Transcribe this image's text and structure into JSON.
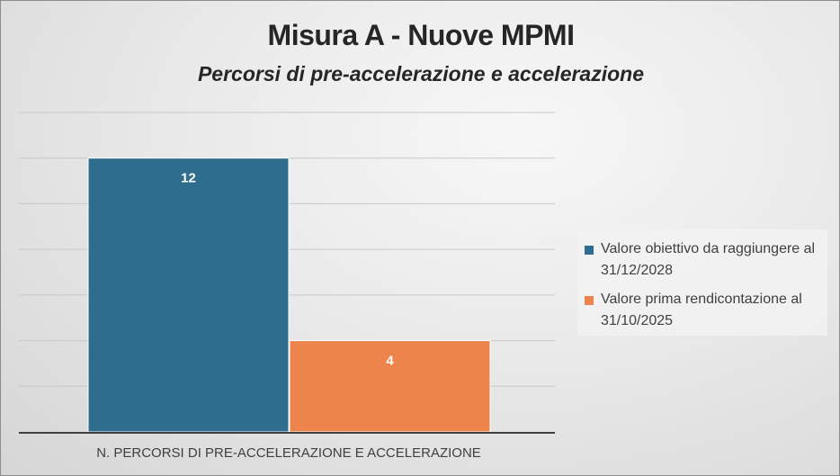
{
  "chart_data": {
    "type": "bar",
    "title": "Misura A - Nuove MPMI",
    "subtitle": "Percorsi di pre-accelerazione e accelerazione",
    "categories": [
      "N. PERCORSI DI PRE-ACCELERAZIONE E ACCELERAZIONE"
    ],
    "series": [
      {
        "name": "Valore obiettivo da raggiungere al 31/12/2028",
        "values": [
          12
        ],
        "color": "#2e6d8e"
      },
      {
        "name": "Valore prima rendicontazione al 31/10/2025",
        "values": [
          4
        ],
        "color": "#ec844c"
      }
    ],
    "data_labels": [
      "12",
      "4"
    ],
    "ylim": [
      0,
      14
    ],
    "grid": true,
    "legend_position": "right"
  }
}
